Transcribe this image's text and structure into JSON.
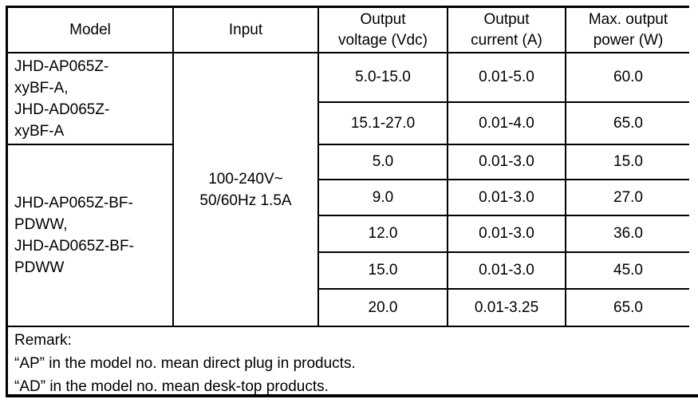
{
  "table": {
    "headers": [
      "Model",
      "Input",
      "Output\nvoltage (Vdc)",
      "Output\ncurrent (A)",
      "Max. output\npower (W)"
    ],
    "model_groups": [
      {
        "name": "JHD-AP065Z-\nxyBF-A,\nJHD-AD065Z-\nxyBF-A",
        "rowspan": 2
      },
      {
        "name": "JHD-AP065Z-BF-\nPDWW,\nJHD-AD065Z-BF-\nPDWW",
        "rowspan": 5
      }
    ],
    "input": "100-240V~\n50/60Hz 1.5A",
    "rows": [
      {
        "voltage": "5.0-15.0",
        "current": "0.01-5.0",
        "power": "60.0"
      },
      {
        "voltage": "15.1-27.0",
        "current": "0.01-4.0",
        "power": "65.0"
      },
      {
        "voltage": "5.0",
        "current": "0.01-3.0",
        "power": "15.0"
      },
      {
        "voltage": "9.0",
        "current": "0.01-3.0",
        "power": "27.0"
      },
      {
        "voltage": "12.0",
        "current": "0.01-3.0",
        "power": "36.0"
      },
      {
        "voltage": "15.0",
        "current": "0.01-3.0",
        "power": "45.0"
      },
      {
        "voltage": "20.0",
        "current": "0.01-3.25",
        "power": "65.0"
      }
    ],
    "remark": {
      "title": "Remark:",
      "lines": [
        "“AP” in the model no. mean direct plug in products.",
        "“AD” in the model no. mean desk-top products."
      ]
    }
  },
  "colors": {
    "border": "#000000",
    "background": "#ffffff",
    "text": "#000000"
  }
}
